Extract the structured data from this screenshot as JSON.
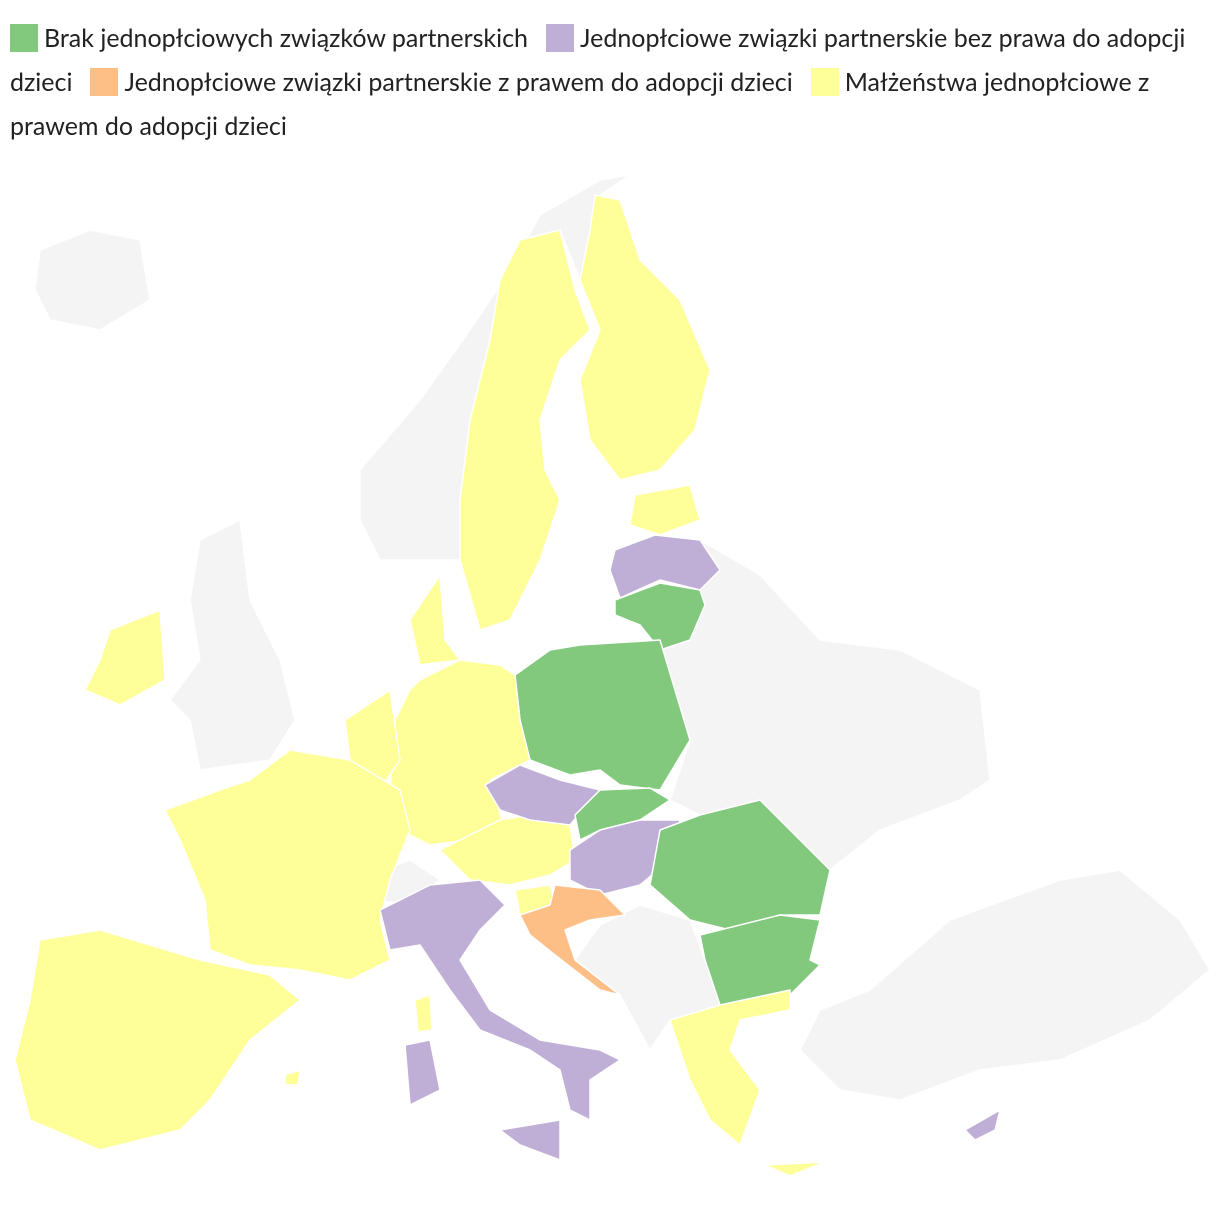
{
  "legend": [
    {
      "label": "Brak jednopłciowych związków partnerskich",
      "color": "#82c97e"
    },
    {
      "label": "Jednopłciowe związki partnerskie bez prawa do adopcji dzieci",
      "color": "#bfaed6"
    },
    {
      "label": "Jednopłciowe związki partnerskie z prawem do adopcji dzieci",
      "color": "#fdbf86"
    },
    {
      "label": "Małżeństwa jednopłciowe z prawem do adopcji dzieci",
      "color": "#ffff99"
    }
  ]
}
